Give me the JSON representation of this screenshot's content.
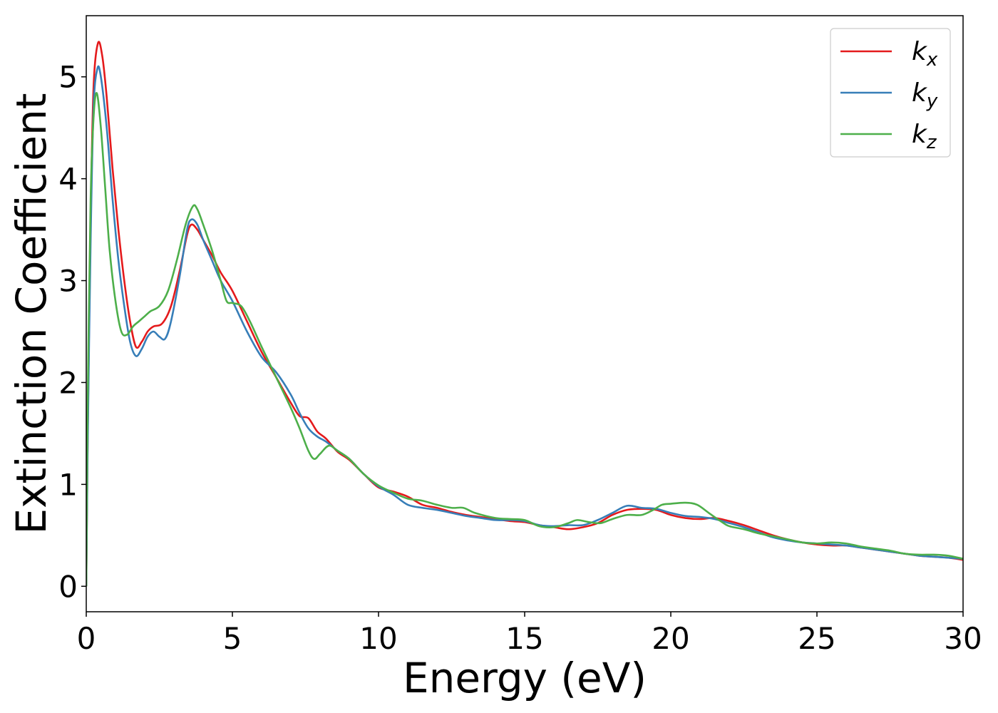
{
  "chart_data": {
    "type": "line",
    "xlabel": "Energy (eV)",
    "ylabel": "Extinction Coefficient",
    "xlim": [
      0,
      30
    ],
    "ylim": [
      -0.25,
      5.6
    ],
    "xticks": [
      0,
      5,
      10,
      15,
      20,
      25,
      30
    ],
    "yticks": [
      0,
      1,
      2,
      3,
      4,
      5
    ],
    "grid": false,
    "legend_position": "top-right",
    "series": [
      {
        "name": "k_x",
        "label_base": "k",
        "label_sub": "x",
        "color": "#e41a1c",
        "points": [
          [
            0,
            0
          ],
          [
            0.05,
            1.5
          ],
          [
            0.15,
            3.6
          ],
          [
            0.25,
            4.9
          ],
          [
            0.4,
            5.33
          ],
          [
            0.55,
            5.2
          ],
          [
            0.7,
            4.8
          ],
          [
            0.9,
            4.1
          ],
          [
            1.1,
            3.5
          ],
          [
            1.3,
            3.0
          ],
          [
            1.5,
            2.6
          ],
          [
            1.7,
            2.35
          ],
          [
            1.9,
            2.4
          ],
          [
            2.1,
            2.5
          ],
          [
            2.3,
            2.55
          ],
          [
            2.6,
            2.58
          ],
          [
            2.9,
            2.75
          ],
          [
            3.2,
            3.1
          ],
          [
            3.45,
            3.45
          ],
          [
            3.6,
            3.55
          ],
          [
            3.8,
            3.5
          ],
          [
            4.0,
            3.4
          ],
          [
            4.3,
            3.25
          ],
          [
            4.6,
            3.08
          ],
          [
            5.0,
            2.9
          ],
          [
            5.5,
            2.6
          ],
          [
            6.0,
            2.3
          ],
          [
            6.5,
            2.05
          ],
          [
            7.0,
            1.8
          ],
          [
            7.3,
            1.67
          ],
          [
            7.6,
            1.65
          ],
          [
            7.9,
            1.52
          ],
          [
            8.2,
            1.45
          ],
          [
            8.6,
            1.32
          ],
          [
            9.0,
            1.24
          ],
          [
            9.5,
            1.1
          ],
          [
            10.0,
            0.97
          ],
          [
            10.5,
            0.93
          ],
          [
            11.0,
            0.88
          ],
          [
            11.5,
            0.8
          ],
          [
            12.0,
            0.77
          ],
          [
            12.5,
            0.73
          ],
          [
            13.0,
            0.7
          ],
          [
            13.5,
            0.68
          ],
          [
            14.0,
            0.66
          ],
          [
            14.5,
            0.64
          ],
          [
            15.0,
            0.63
          ],
          [
            15.5,
            0.6
          ],
          [
            16.0,
            0.58
          ],
          [
            16.5,
            0.56
          ],
          [
            17.0,
            0.58
          ],
          [
            17.5,
            0.62
          ],
          [
            18.0,
            0.7
          ],
          [
            18.5,
            0.75
          ],
          [
            19.0,
            0.76
          ],
          [
            19.5,
            0.75
          ],
          [
            20.0,
            0.7
          ],
          [
            20.5,
            0.67
          ],
          [
            21.0,
            0.66
          ],
          [
            21.5,
            0.67
          ],
          [
            22.0,
            0.64
          ],
          [
            22.5,
            0.6
          ],
          [
            23.0,
            0.55
          ],
          [
            23.5,
            0.5
          ],
          [
            24.0,
            0.46
          ],
          [
            24.5,
            0.43
          ],
          [
            25.0,
            0.41
          ],
          [
            25.5,
            0.4
          ],
          [
            26.0,
            0.4
          ],
          [
            26.5,
            0.38
          ],
          [
            27.0,
            0.36
          ],
          [
            27.5,
            0.34
          ],
          [
            28.0,
            0.32
          ],
          [
            28.5,
            0.3
          ],
          [
            29.0,
            0.29
          ],
          [
            29.5,
            0.28
          ],
          [
            30.0,
            0.26
          ]
        ]
      },
      {
        "name": "k_y",
        "label_base": "k",
        "label_sub": "y",
        "color": "#377eb8",
        "points": [
          [
            0,
            0
          ],
          [
            0.05,
            1.4
          ],
          [
            0.15,
            3.4
          ],
          [
            0.25,
            4.7
          ],
          [
            0.38,
            5.08
          ],
          [
            0.5,
            5.0
          ],
          [
            0.7,
            4.5
          ],
          [
            0.9,
            3.8
          ],
          [
            1.1,
            3.2
          ],
          [
            1.3,
            2.75
          ],
          [
            1.5,
            2.4
          ],
          [
            1.7,
            2.26
          ],
          [
            1.9,
            2.33
          ],
          [
            2.1,
            2.45
          ],
          [
            2.3,
            2.5
          ],
          [
            2.5,
            2.45
          ],
          [
            2.7,
            2.43
          ],
          [
            2.9,
            2.6
          ],
          [
            3.2,
            3.05
          ],
          [
            3.45,
            3.5
          ],
          [
            3.6,
            3.6
          ],
          [
            3.8,
            3.55
          ],
          [
            4.0,
            3.4
          ],
          [
            4.3,
            3.2
          ],
          [
            4.6,
            3.0
          ],
          [
            5.0,
            2.8
          ],
          [
            5.5,
            2.5
          ],
          [
            6.0,
            2.25
          ],
          [
            6.5,
            2.1
          ],
          [
            7.0,
            1.88
          ],
          [
            7.3,
            1.7
          ],
          [
            7.6,
            1.55
          ],
          [
            7.9,
            1.47
          ],
          [
            8.2,
            1.42
          ],
          [
            8.6,
            1.33
          ],
          [
            9.0,
            1.25
          ],
          [
            9.5,
            1.1
          ],
          [
            10.0,
            0.98
          ],
          [
            10.5,
            0.9
          ],
          [
            11.0,
            0.8
          ],
          [
            11.5,
            0.77
          ],
          [
            12.0,
            0.75
          ],
          [
            12.5,
            0.72
          ],
          [
            13.0,
            0.69
          ],
          [
            13.5,
            0.67
          ],
          [
            14.0,
            0.65
          ],
          [
            14.5,
            0.65
          ],
          [
            15.0,
            0.64
          ],
          [
            15.5,
            0.6
          ],
          [
            16.0,
            0.59
          ],
          [
            16.5,
            0.6
          ],
          [
            17.0,
            0.6
          ],
          [
            17.5,
            0.65
          ],
          [
            18.0,
            0.72
          ],
          [
            18.5,
            0.79
          ],
          [
            19.0,
            0.77
          ],
          [
            19.5,
            0.76
          ],
          [
            20.0,
            0.72
          ],
          [
            20.5,
            0.69
          ],
          [
            21.0,
            0.68
          ],
          [
            21.5,
            0.66
          ],
          [
            22.0,
            0.62
          ],
          [
            22.5,
            0.58
          ],
          [
            23.0,
            0.53
          ],
          [
            23.5,
            0.48
          ],
          [
            24.0,
            0.45
          ],
          [
            24.5,
            0.43
          ],
          [
            25.0,
            0.42
          ],
          [
            25.5,
            0.41
          ],
          [
            26.0,
            0.4
          ],
          [
            26.5,
            0.38
          ],
          [
            27.0,
            0.36
          ],
          [
            27.5,
            0.34
          ],
          [
            28.0,
            0.32
          ],
          [
            28.5,
            0.3
          ],
          [
            29.0,
            0.29
          ],
          [
            29.5,
            0.28
          ],
          [
            30.0,
            0.27
          ]
        ]
      },
      {
        "name": "k_z",
        "label_base": "k",
        "label_sub": "z",
        "color": "#4daf4a",
        "points": [
          [
            0,
            0
          ],
          [
            0.05,
            1.8
          ],
          [
            0.15,
            3.8
          ],
          [
            0.25,
            4.6
          ],
          [
            0.36,
            4.84
          ],
          [
            0.5,
            4.5
          ],
          [
            0.65,
            3.9
          ],
          [
            0.8,
            3.3
          ],
          [
            1.0,
            2.8
          ],
          [
            1.2,
            2.5
          ],
          [
            1.4,
            2.47
          ],
          [
            1.6,
            2.55
          ],
          [
            1.8,
            2.6
          ],
          [
            2.0,
            2.65
          ],
          [
            2.2,
            2.7
          ],
          [
            2.5,
            2.75
          ],
          [
            2.8,
            2.9
          ],
          [
            3.1,
            3.2
          ],
          [
            3.4,
            3.55
          ],
          [
            3.65,
            3.73
          ],
          [
            3.8,
            3.7
          ],
          [
            4.0,
            3.55
          ],
          [
            4.3,
            3.3
          ],
          [
            4.6,
            3.0
          ],
          [
            4.8,
            2.8
          ],
          [
            5.0,
            2.78
          ],
          [
            5.3,
            2.75
          ],
          [
            5.6,
            2.6
          ],
          [
            6.0,
            2.35
          ],
          [
            6.5,
            2.05
          ],
          [
            7.0,
            1.75
          ],
          [
            7.3,
            1.55
          ],
          [
            7.6,
            1.33
          ],
          [
            7.8,
            1.25
          ],
          [
            8.0,
            1.3
          ],
          [
            8.3,
            1.38
          ],
          [
            8.6,
            1.33
          ],
          [
            9.0,
            1.25
          ],
          [
            9.5,
            1.1
          ],
          [
            10.0,
            0.99
          ],
          [
            10.5,
            0.92
          ],
          [
            11.0,
            0.86
          ],
          [
            11.5,
            0.84
          ],
          [
            12.0,
            0.8
          ],
          [
            12.5,
            0.77
          ],
          [
            12.9,
            0.77
          ],
          [
            13.3,
            0.72
          ],
          [
            14.0,
            0.67
          ],
          [
            14.5,
            0.66
          ],
          [
            15.0,
            0.65
          ],
          [
            15.5,
            0.59
          ],
          [
            16.0,
            0.58
          ],
          [
            16.5,
            0.62
          ],
          [
            16.8,
            0.65
          ],
          [
            17.2,
            0.63
          ],
          [
            17.6,
            0.62
          ],
          [
            18.0,
            0.66
          ],
          [
            18.5,
            0.7
          ],
          [
            19.0,
            0.7
          ],
          [
            19.4,
            0.75
          ],
          [
            19.7,
            0.8
          ],
          [
            20.0,
            0.81
          ],
          [
            20.5,
            0.82
          ],
          [
            20.9,
            0.8
          ],
          [
            21.3,
            0.72
          ],
          [
            21.7,
            0.64
          ],
          [
            22.0,
            0.59
          ],
          [
            22.5,
            0.56
          ],
          [
            23.0,
            0.52
          ],
          [
            23.5,
            0.49
          ],
          [
            24.0,
            0.46
          ],
          [
            24.5,
            0.43
          ],
          [
            25.0,
            0.42
          ],
          [
            25.5,
            0.43
          ],
          [
            26.0,
            0.42
          ],
          [
            26.5,
            0.39
          ],
          [
            27.0,
            0.37
          ],
          [
            27.5,
            0.35
          ],
          [
            28.0,
            0.32
          ],
          [
            28.5,
            0.31
          ],
          [
            29.0,
            0.31
          ],
          [
            29.5,
            0.3
          ],
          [
            30.0,
            0.27
          ]
        ]
      }
    ]
  }
}
